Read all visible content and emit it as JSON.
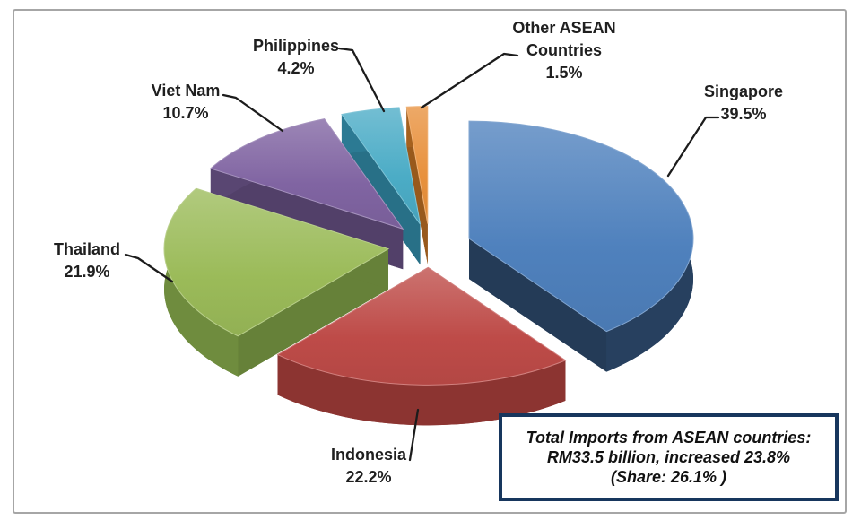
{
  "chart_data": {
    "type": "pie",
    "style": "3d-exploded-pie",
    "direction": "clockwise",
    "start_angle_deg": 0,
    "unit": "percent",
    "legend": "none",
    "leader_line_color": "#1C1C1C",
    "frame_border_color": "#A6A6A6",
    "slices": [
      {
        "label": "Singapore",
        "label_lines": [
          "Singapore"
        ],
        "value": 39.5,
        "pct_label": "39.5%",
        "color": "#4F81BD",
        "side_color": "#27405F"
      },
      {
        "label": "Indonesia",
        "label_lines": [
          "Indonesia"
        ],
        "value": 22.2,
        "pct_label": "22.2%",
        "color": "#BE4B48",
        "side_color": "#8C3431"
      },
      {
        "label": "Thailand",
        "label_lines": [
          "Thailand"
        ],
        "value": 21.9,
        "pct_label": "21.9%",
        "color": "#9BBB59",
        "side_color": "#6F8C3E"
      },
      {
        "label": "Viet Nam",
        "label_lines": [
          "Viet Nam"
        ],
        "value": 10.7,
        "pct_label": "10.7%",
        "color": "#8064A2",
        "side_color": "#594672"
      },
      {
        "label": "Philippines",
        "label_lines": [
          "Philippines"
        ],
        "value": 4.2,
        "pct_label": "4.2%",
        "color": "#4BACC6",
        "side_color": "#2C7A93"
      },
      {
        "label": "Other ASEAN Countries",
        "label_lines": [
          "Other ASEAN",
          "Countries"
        ],
        "value": 1.5,
        "pct_label": "1.5%",
        "color": "#E8913D",
        "side_color": "#A5611E"
      }
    ],
    "annotation_box": {
      "border_color": "#17365D",
      "lines": [
        "Total Imports from ASEAN countries:",
        "RM33.5 billion, increased 23.8%",
        "(Share: 26.1% )"
      ]
    }
  }
}
